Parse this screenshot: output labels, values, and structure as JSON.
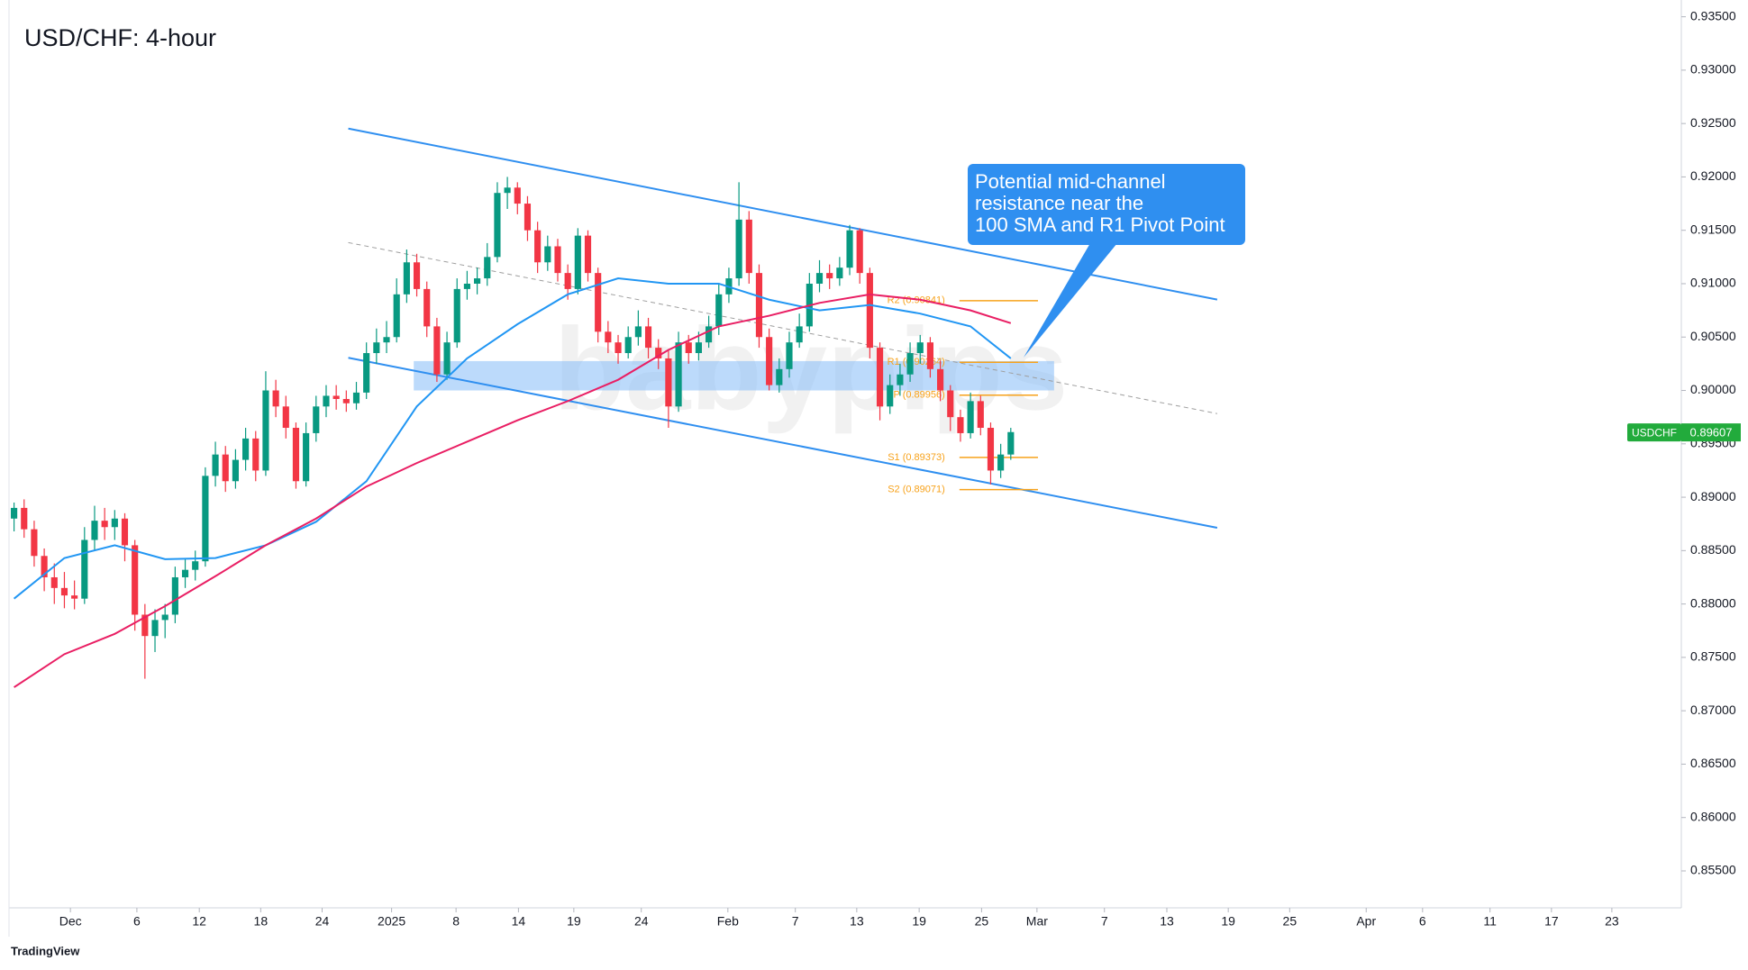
{
  "chart_data": {
    "type": "candlestick",
    "title": "USD/CHF: 4-hour",
    "watermark": "babypips",
    "footer": "TradingView",
    "xlim": [
      -0.5,
      165.6
    ],
    "ylim": [
      0.85154,
      0.93657
    ],
    "grid": false,
    "xticks": [
      {
        "value": 5.6,
        "label": "Dec"
      },
      {
        "value": 12.2,
        "label": "6"
      },
      {
        "value": 18.4,
        "label": "12"
      },
      {
        "value": 24.5,
        "label": "18"
      },
      {
        "value": 30.6,
        "label": "24"
      },
      {
        "value": 37.5,
        "label": "2025"
      },
      {
        "value": 43.9,
        "label": "8"
      },
      {
        "value": 50.1,
        "label": "14"
      },
      {
        "value": 55.6,
        "label": "19"
      },
      {
        "value": 62.3,
        "label": "24"
      },
      {
        "value": 70.9,
        "label": "Feb"
      },
      {
        "value": 77.6,
        "label": "7"
      },
      {
        "value": 83.7,
        "label": "13"
      },
      {
        "value": 89.9,
        "label": "19"
      },
      {
        "value": 96.1,
        "label": "25"
      },
      {
        "value": 101.6,
        "label": "Mar"
      },
      {
        "value": 108.3,
        "label": "7"
      },
      {
        "value": 114.5,
        "label": "13"
      },
      {
        "value": 120.6,
        "label": "19"
      },
      {
        "value": 126.7,
        "label": "25"
      },
      {
        "value": 134.3,
        "label": "Apr"
      },
      {
        "value": 139.9,
        "label": "6"
      },
      {
        "value": 146.6,
        "label": "11"
      },
      {
        "value": 152.7,
        "label": "17"
      },
      {
        "value": 158.7,
        "label": "23"
      }
    ],
    "yticks": [
      {
        "value": 0.935,
        "label": "0.93500"
      },
      {
        "value": 0.93,
        "label": "0.93000"
      },
      {
        "value": 0.925,
        "label": "0.92500"
      },
      {
        "value": 0.92,
        "label": "0.92000"
      },
      {
        "value": 0.915,
        "label": "0.91500"
      },
      {
        "value": 0.91,
        "label": "0.91000"
      },
      {
        "value": 0.905,
        "label": "0.90500"
      },
      {
        "value": 0.9,
        "label": "0.90000"
      },
      {
        "value": 0.895,
        "label": "0.89500"
      },
      {
        "value": 0.89,
        "label": "0.89000"
      },
      {
        "value": 0.885,
        "label": "0.88500"
      },
      {
        "value": 0.88,
        "label": "0.88000"
      },
      {
        "value": 0.875,
        "label": "0.87500"
      },
      {
        "value": 0.87,
        "label": "0.87000"
      },
      {
        "value": 0.865,
        "label": "0.86500"
      },
      {
        "value": 0.86,
        "label": "0.86000"
      },
      {
        "value": 0.855,
        "label": "0.85500"
      }
    ],
    "up_color": "#089981",
    "down_color": "#f23645",
    "series": [
      {
        "values": [
          [
            0.888,
            0.8895,
            0.8868,
            0.889
          ],
          [
            0.889,
            0.8898,
            0.8862,
            0.887
          ],
          [
            0.887,
            0.8878,
            0.8835,
            0.8845
          ],
          [
            0.8845,
            0.8852,
            0.8812,
            0.8825
          ],
          [
            0.8825,
            0.8838,
            0.88,
            0.8815
          ],
          [
            0.8815,
            0.883,
            0.8796,
            0.8808
          ],
          [
            0.8808,
            0.8822,
            0.8795,
            0.8805
          ],
          [
            0.8805,
            0.8872,
            0.88,
            0.886
          ],
          [
            0.886,
            0.8892,
            0.885,
            0.8878
          ],
          [
            0.8878,
            0.889,
            0.886,
            0.8872
          ],
          [
            0.8872,
            0.8888,
            0.886,
            0.888
          ],
          [
            0.888,
            0.8885,
            0.884,
            0.8855
          ],
          [
            0.8855,
            0.886,
            0.8775,
            0.879
          ],
          [
            0.879,
            0.88,
            0.873,
            0.877
          ],
          [
            0.877,
            0.8795,
            0.8755,
            0.8785
          ],
          [
            0.8785,
            0.88,
            0.8768,
            0.879
          ],
          [
            0.879,
            0.8835,
            0.8782,
            0.8825
          ],
          [
            0.8825,
            0.8842,
            0.8815,
            0.8832
          ],
          [
            0.8832,
            0.885,
            0.8822,
            0.884
          ],
          [
            0.884,
            0.8928,
            0.8835,
            0.892
          ],
          [
            0.892,
            0.8952,
            0.891,
            0.894
          ],
          [
            0.894,
            0.8948,
            0.8905,
            0.8915
          ],
          [
            0.8915,
            0.8945,
            0.8908,
            0.8935
          ],
          [
            0.8935,
            0.8965,
            0.8925,
            0.8955
          ],
          [
            0.8955,
            0.8962,
            0.8915,
            0.8925
          ],
          [
            0.8925,
            0.9018,
            0.892,
            0.9
          ],
          [
            0.9,
            0.901,
            0.8975,
            0.8985
          ],
          [
            0.8985,
            0.8995,
            0.8955,
            0.8965
          ],
          [
            0.8965,
            0.897,
            0.8908,
            0.8915
          ],
          [
            0.8915,
            0.897,
            0.891,
            0.896
          ],
          [
            0.896,
            0.8995,
            0.8952,
            0.8985
          ],
          [
            0.8985,
            0.9005,
            0.8975,
            0.8995
          ],
          [
            0.8995,
            0.9005,
            0.8982,
            0.8992
          ],
          [
            0.8992,
            0.9,
            0.898,
            0.8988
          ],
          [
            0.8988,
            0.9008,
            0.8982,
            0.8998
          ],
          [
            0.8998,
            0.9045,
            0.8992,
            0.9035
          ],
          [
            0.9035,
            0.9058,
            0.9025,
            0.9045
          ],
          [
            0.9045,
            0.9065,
            0.9035,
            0.905
          ],
          [
            0.905,
            0.9105,
            0.9045,
            0.909
          ],
          [
            0.909,
            0.9132,
            0.9082,
            0.912
          ],
          [
            0.912,
            0.9128,
            0.9088,
            0.9095
          ],
          [
            0.9095,
            0.9102,
            0.905,
            0.906
          ],
          [
            0.906,
            0.9068,
            0.9008,
            0.9015
          ],
          [
            0.9015,
            0.9055,
            0.901,
            0.9045
          ],
          [
            0.9045,
            0.9105,
            0.904,
            0.9095
          ],
          [
            0.9095,
            0.9112,
            0.9085,
            0.91
          ],
          [
            0.91,
            0.9115,
            0.909,
            0.9105
          ],
          [
            0.9105,
            0.9138,
            0.9098,
            0.9125
          ],
          [
            0.9125,
            0.9195,
            0.912,
            0.9185
          ],
          [
            0.9185,
            0.92,
            0.917,
            0.919
          ],
          [
            0.919,
            0.9195,
            0.9165,
            0.9175
          ],
          [
            0.9175,
            0.9182,
            0.914,
            0.915
          ],
          [
            0.915,
            0.9158,
            0.911,
            0.912
          ],
          [
            0.912,
            0.9145,
            0.9112,
            0.9135
          ],
          [
            0.9135,
            0.9142,
            0.9102,
            0.911
          ],
          [
            0.911,
            0.9118,
            0.9085,
            0.9095
          ],
          [
            0.9095,
            0.9152,
            0.909,
            0.9145
          ],
          [
            0.9145,
            0.915,
            0.9102,
            0.911
          ],
          [
            0.911,
            0.9115,
            0.9045,
            0.9055
          ],
          [
            0.9055,
            0.9065,
            0.9035,
            0.9045
          ],
          [
            0.9045,
            0.9052,
            0.9025,
            0.9035
          ],
          [
            0.9035,
            0.906,
            0.903,
            0.905
          ],
          [
            0.905,
            0.9075,
            0.9042,
            0.906
          ],
          [
            0.906,
            0.9068,
            0.903,
            0.904
          ],
          [
            0.904,
            0.9048,
            0.902,
            0.903
          ],
          [
            0.903,
            0.9038,
            0.8965,
            0.8985
          ],
          [
            0.8985,
            0.9055,
            0.898,
            0.9045
          ],
          [
            0.9045,
            0.9052,
            0.9025,
            0.9035
          ],
          [
            0.9035,
            0.9055,
            0.9028,
            0.9045
          ],
          [
            0.9045,
            0.907,
            0.904,
            0.906
          ],
          [
            0.906,
            0.91,
            0.9052,
            0.909
          ],
          [
            0.909,
            0.9115,
            0.9082,
            0.9105
          ],
          [
            0.9105,
            0.9195,
            0.9098,
            0.916
          ],
          [
            0.916,
            0.9168,
            0.91,
            0.911
          ],
          [
            0.911,
            0.9118,
            0.904,
            0.905
          ],
          [
            0.905,
            0.9058,
            0.9,
            0.9005
          ],
          [
            0.9005,
            0.903,
            0.8998,
            0.902
          ],
          [
            0.902,
            0.9055,
            0.9012,
            0.9045
          ],
          [
            0.9045,
            0.9072,
            0.904,
            0.906
          ],
          [
            0.906,
            0.911,
            0.9055,
            0.91
          ],
          [
            0.91,
            0.9122,
            0.9092,
            0.911
          ],
          [
            0.911,
            0.9118,
            0.9095,
            0.9105
          ],
          [
            0.9105,
            0.9125,
            0.9098,
            0.9115
          ],
          [
            0.9115,
            0.9155,
            0.9108,
            0.915
          ],
          [
            0.915,
            0.9152,
            0.91,
            0.911
          ],
          [
            0.911,
            0.9115,
            0.903,
            0.904
          ],
          [
            0.904,
            0.9045,
            0.8972,
            0.8985
          ],
          [
            0.8985,
            0.9015,
            0.8978,
            0.9005
          ],
          [
            0.9005,
            0.9025,
            0.8995,
            0.9015
          ],
          [
            0.9015,
            0.9045,
            0.9008,
            0.9035
          ],
          [
            0.9035,
            0.9052,
            0.9025,
            0.9045
          ],
          [
            0.9045,
            0.905,
            0.9012,
            0.902
          ],
          [
            0.902,
            0.9028,
            0.899,
            0.9
          ],
          [
            0.9,
            0.9005,
            0.8962,
            0.8975
          ],
          [
            0.8975,
            0.8982,
            0.8952,
            0.896
          ],
          [
            0.896,
            0.8998,
            0.8955,
            0.899
          ],
          [
            0.899,
            0.8995,
            0.8958,
            0.8965
          ],
          [
            0.8965,
            0.897,
            0.8912,
            0.8925
          ],
          [
            0.8925,
            0.895,
            0.8918,
            0.894
          ],
          [
            0.894,
            0.8965,
            0.8935,
            0.8961
          ]
        ]
      }
    ],
    "lines": [
      {
        "color": "#2196f3",
        "x": [
          0,
          5,
          10,
          15,
          20,
          25,
          30,
          35,
          40,
          45,
          50,
          55,
          60,
          65,
          70,
          75,
          80,
          85,
          90,
          95,
          99
        ],
        "values": [
          0.8805,
          0.8843,
          0.8855,
          0.8842,
          0.8843,
          0.8855,
          0.8877,
          0.8915,
          0.8985,
          0.903,
          0.9062,
          0.909,
          0.9105,
          0.91,
          0.91,
          0.9085,
          0.9075,
          0.908,
          0.9072,
          0.906,
          0.903
        ]
      },
      {
        "color": "#e91e63",
        "x": [
          0,
          5,
          10,
          15,
          20,
          25,
          30,
          35,
          40,
          45,
          50,
          55,
          60,
          65,
          70,
          75,
          80,
          85,
          90,
          95,
          99
        ],
        "values": [
          0.8722,
          0.8753,
          0.8772,
          0.8798,
          0.8826,
          0.8855,
          0.888,
          0.891,
          0.8932,
          0.8952,
          0.8972,
          0.899,
          0.901,
          0.9038,
          0.906,
          0.907,
          0.9082,
          0.909,
          0.9085,
          0.9075,
          0.9063
        ]
      }
    ],
    "channel": [
      {
        "color": "#2f8ff0",
        "dashed": false,
        "x": [
          33.2,
          119.5
        ],
        "values": [
          0.92453,
          0.90851
        ]
      },
      {
        "color": "#9e9e9e",
        "dashed": true,
        "x": [
          33.2,
          119.5
        ],
        "values": [
          0.91385,
          0.89783
        ]
      },
      {
        "color": "#2f8ff0",
        "dashed": false,
        "x": [
          33.2,
          119.5
        ],
        "values": [
          0.90306,
          0.88714
        ]
      }
    ],
    "zone": {
      "color": "#90c2f9",
      "x": [
        39.7,
        103.3
      ],
      "values": [
        0.9,
        0.90275
      ]
    },
    "pivot_color": "#f7a21b",
    "pivot_x": [
      93.9,
      101.7
    ],
    "pivots": [
      {
        "label": "R2 (0.90841)",
        "value": 0.90841
      },
      {
        "label": "R1 (0.90264)",
        "value": 0.90264
      },
      {
        "label": "P (0.89956)",
        "value": 0.89956
      },
      {
        "label": "S1 (0.89373)",
        "value": 0.89373
      },
      {
        "label": "S2 (0.89071)",
        "value": 0.89071
      }
    ],
    "last_price": {
      "symbol": "USDCHF",
      "value": 0.89607,
      "color": "#22ab3c"
    },
    "annotation": {
      "color": "#2f8ff0",
      "lines": [
        "Potential mid-channel",
        "resistance near the",
        "100 SMA and R1 Pivot Point"
      ]
    }
  }
}
